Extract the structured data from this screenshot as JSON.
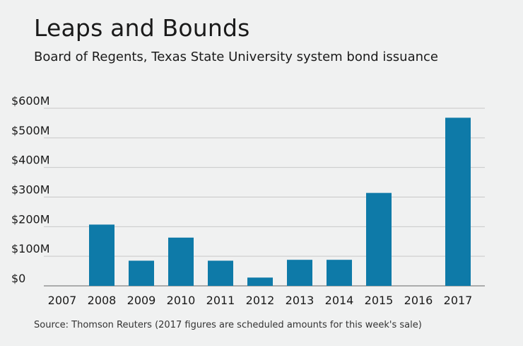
{
  "title": "Leaps and Bounds",
  "subtitle": "Board of Regents, Texas State University system bond issuance",
  "source": "Source: Thomson Reuters (2017 figures are scheduled amounts for this week's sale)",
  "colors": {
    "bar": "#0e7aa8",
    "grid": "#c8c8c8",
    "axis": "#666666"
  },
  "chart_data": {
    "type": "bar",
    "categories": [
      "2007",
      "2008",
      "2009",
      "2010",
      "2011",
      "2012",
      "2013",
      "2014",
      "2015",
      "2016",
      "2017"
    ],
    "values": [
      0,
      207,
      85,
      163,
      85,
      28,
      88,
      88,
      314,
      0,
      568
    ],
    "yticks": [
      "$0",
      "$100M",
      "$200M",
      "$300M",
      "$400M",
      "$500M",
      "$600M"
    ],
    "ylim": [
      0,
      600
    ],
    "grid": true
  }
}
